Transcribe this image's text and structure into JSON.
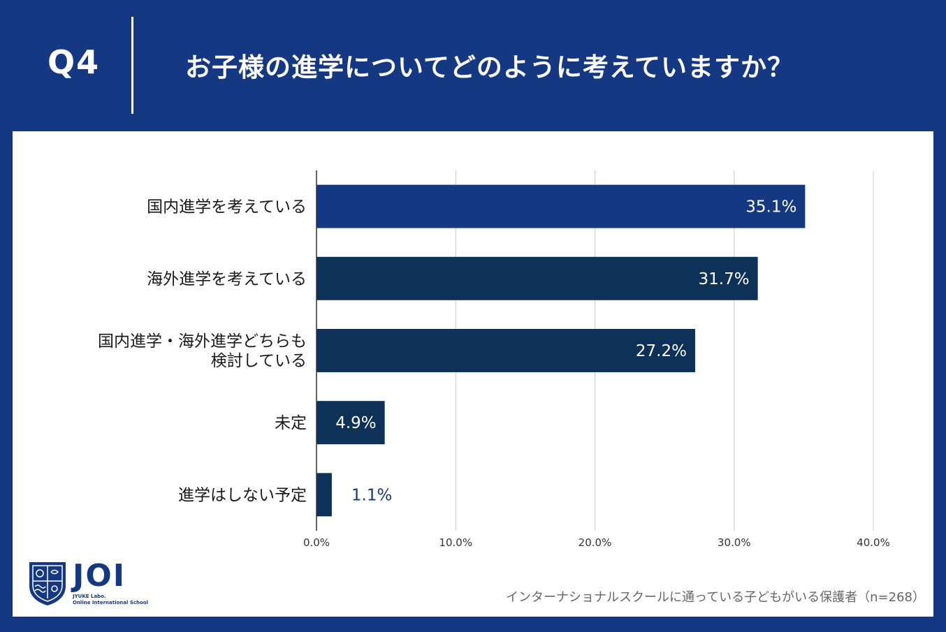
{
  "header": {
    "question_number": "Q4",
    "question_text": "お子様の進学についてどのように考えていますか？"
  },
  "colors": {
    "background": "#153882",
    "bar_primary": "#153882",
    "bar_secondary": "#0d3157",
    "panel": "#ffffff"
  },
  "chart_data": {
    "type": "bar",
    "orientation": "horizontal",
    "categories": [
      [
        "国内進学を考えている"
      ],
      [
        "海外進学を考えている"
      ],
      [
        "国内進学・海外進学どちらも",
        "検討している"
      ],
      [
        "未定"
      ],
      [
        "進学はしない予定"
      ]
    ],
    "values": [
      35.1,
      31.7,
      27.2,
      4.9,
      1.1
    ],
    "value_labels": [
      "35.1%",
      "31.7%",
      "27.2%",
      "4.9%",
      "1.1%"
    ],
    "bar_colors": [
      "#153882",
      "#0d3157",
      "#0d3157",
      "#0d3157",
      "#0d3157"
    ],
    "xlim": [
      0,
      40
    ],
    "x_ticks": [
      0,
      10,
      20,
      30,
      40
    ],
    "x_tick_labels": [
      "0.0%",
      "10.0%",
      "20.0%",
      "30.0%",
      "40.0%"
    ],
    "grid": true
  },
  "logo": {
    "name": "JOI",
    "sub_line1": "JYUKE Labo.",
    "sub_line2": "Online International School"
  },
  "source_note": "インターナショナルスクールに通っている子どもがいる保護者（n=268）"
}
